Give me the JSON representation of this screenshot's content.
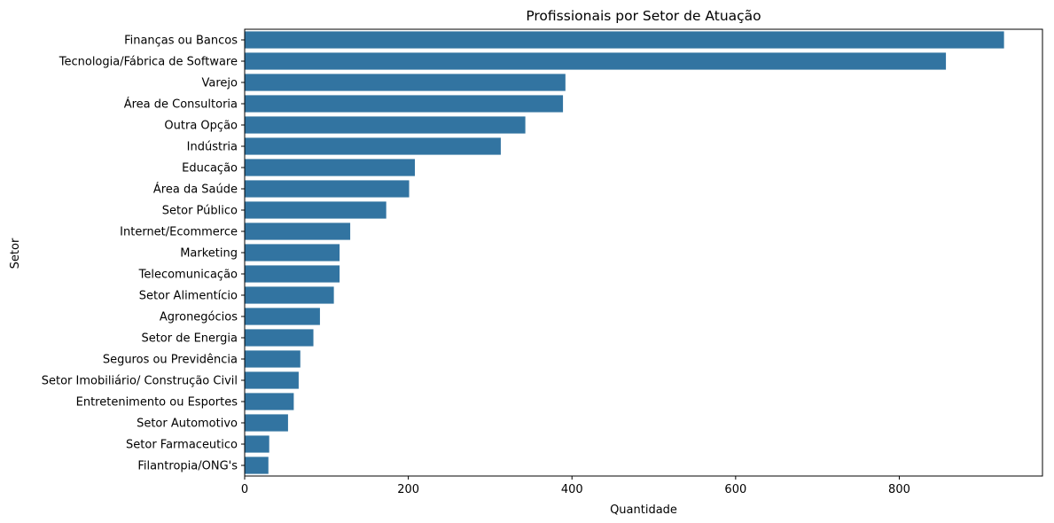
{
  "chart_data": {
    "type": "bar",
    "orientation": "horizontal",
    "title": "Profissionais por Setor de Atuação",
    "xlabel": "Quantidade",
    "ylabel": "Setor",
    "xlim": [
      0,
      975
    ],
    "xticks": [
      0,
      200,
      400,
      600,
      800
    ],
    "bar_color": "#3274a1",
    "grid": false,
    "legend": "none",
    "categories": [
      "Finanças ou Bancos",
      "Tecnologia/Fábrica de Software",
      "Varejo",
      "Área de Consultoria",
      "Outra Opção",
      "Indústria",
      "Educação",
      "Área da Saúde",
      "Setor Público",
      "Internet/Ecommerce",
      "Marketing",
      "Telecomunicação",
      "Setor Alimentício",
      "Agronegócios",
      "Setor de Energia",
      "Seguros ou Previdência",
      "Setor Imobiliário/ Construção Civil",
      "Entretenimento ou Esportes",
      "Setor Automotivo",
      "Setor Farmaceutico",
      "Filantropia/ONG's"
    ],
    "values": [
      928,
      857,
      392,
      389,
      343,
      313,
      208,
      201,
      173,
      129,
      116,
      116,
      109,
      92,
      84,
      68,
      66,
      60,
      53,
      30,
      29
    ]
  }
}
